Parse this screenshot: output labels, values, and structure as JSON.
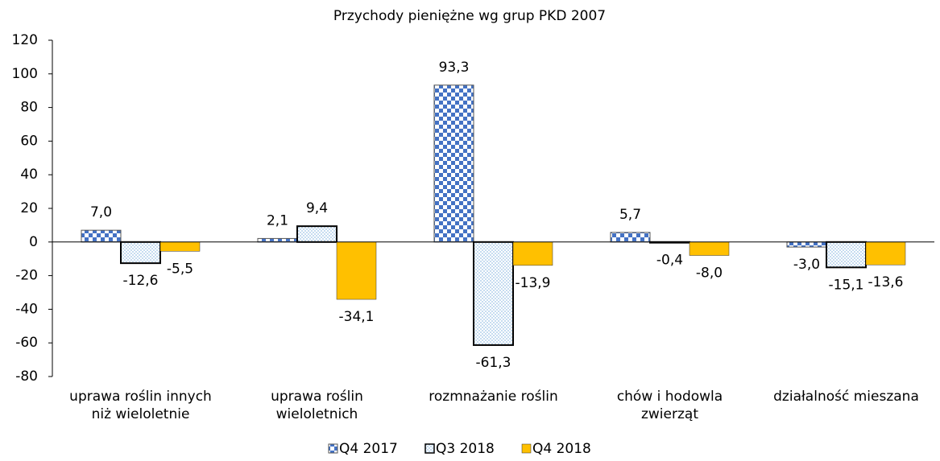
{
  "chart_data": {
    "type": "bar",
    "title": "Przychody pieniężne wg grup PKD 2007",
    "categories": [
      "uprawa roślin innych niż wieloletnie",
      "uprawa roślin wieloletnich",
      "rozmnażanie roślin",
      "chów i hodowla zwierząt",
      "działalność mieszana"
    ],
    "series": [
      {
        "name": "Q4 2017",
        "color": "#4472c4",
        "values": [
          7.0,
          2.1,
          93.3,
          5.7,
          -3.0
        ],
        "value_labels": [
          "7,0",
          "2,1",
          "93,3",
          "5,7",
          "-3,0"
        ]
      },
      {
        "name": "Q3 2018",
        "color": "#9dc3e6",
        "values": [
          -12.6,
          9.4,
          -61.3,
          -0.4,
          -15.1
        ],
        "value_labels": [
          "-12,6",
          "9,4",
          "-61,3",
          "-0,4",
          "-15,1"
        ]
      },
      {
        "name": "Q4 2018",
        "color": "#ffc000",
        "values": [
          -5.5,
          -34.1,
          -13.9,
          -8.0,
          -13.6
        ],
        "value_labels": [
          "-5,5",
          "-34,1",
          "-13,9",
          "-8,0",
          "-13,6"
        ]
      }
    ],
    "ylim": [
      -80,
      120
    ],
    "yticks": [
      -80,
      -60,
      -40,
      -20,
      0,
      20,
      40,
      60,
      80,
      100,
      120
    ],
    "grid": false,
    "legend": "bottom"
  }
}
